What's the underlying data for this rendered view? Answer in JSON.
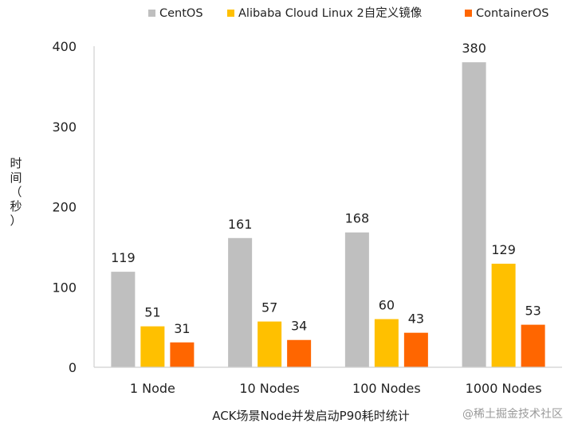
{
  "chart_data": {
    "type": "bar",
    "categories": [
      "1 Node",
      "10 Nodes",
      "100 Nodes",
      "1000 Nodes"
    ],
    "series": [
      {
        "name": "CentOS",
        "color": "#bfbfbf",
        "values": [
          119,
          161,
          168,
          380
        ]
      },
      {
        "name": "Alibaba Cloud Linux 2自定义镜像",
        "color": "#ffc000",
        "values": [
          51,
          57,
          60,
          129
        ]
      },
      {
        "name": "ContainerOS",
        "color": "#ff6600",
        "values": [
          31,
          34,
          43,
          53
        ]
      }
    ],
    "xlabel": "ACK场景Node并发启动P90耗时统计",
    "ylabel": "时间（秒）",
    "ylim": [
      0,
      400
    ],
    "yticks": [
      0,
      100,
      200,
      300,
      400
    ],
    "grid": false,
    "legend_position": "top"
  },
  "watermark": "@稀土掘金技术社区"
}
